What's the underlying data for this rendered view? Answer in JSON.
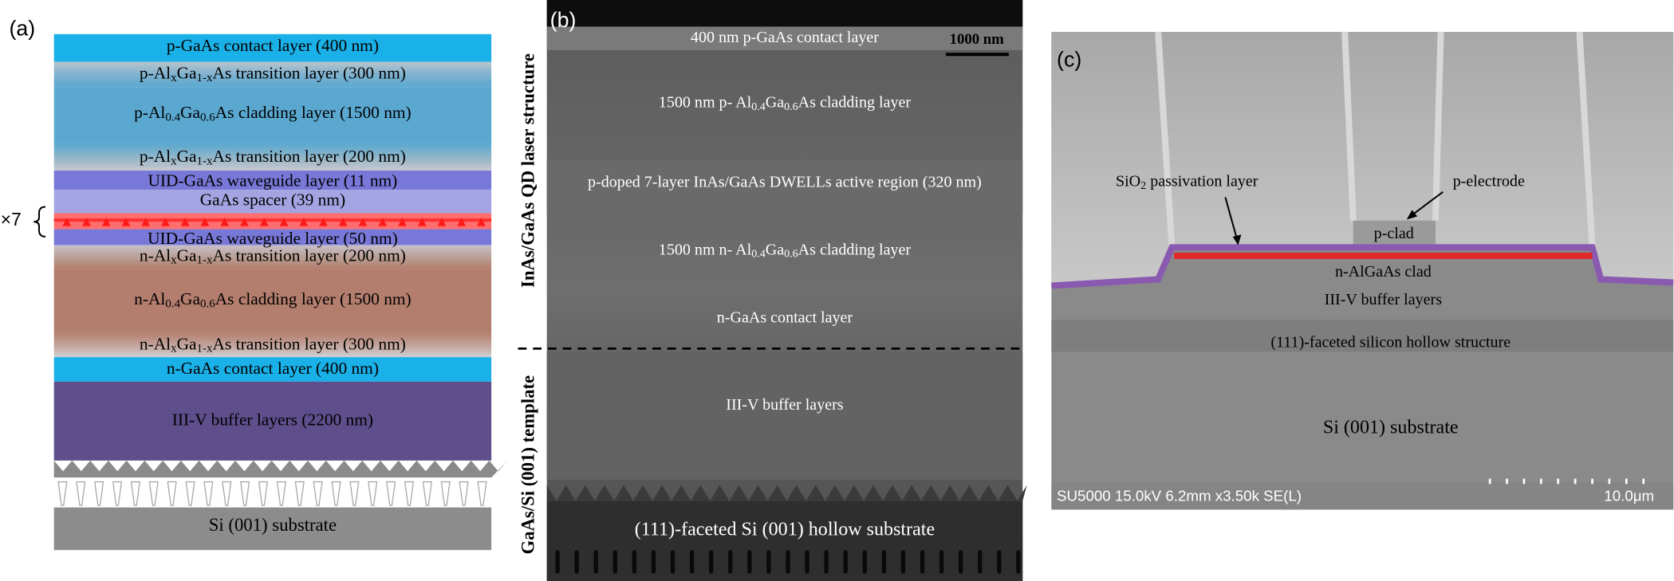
{
  "panel_a": {
    "label": "(a)",
    "repeat": "×7",
    "layers": [
      "p-GaAs contact layer (400 nm)",
      [
        "p-Al",
        "x",
        "Ga",
        "1-x",
        "As transition layer (300 nm)"
      ],
      [
        "p-Al",
        "0.4",
        "Ga",
        "0.6",
        "As cladding layer (1500 nm)"
      ],
      [
        "p-Al",
        "x",
        "Ga",
        "1-x",
        "As transition layer (200 nm)"
      ],
      "UID-GaAs waveguide layer (11 nm)",
      "GaAs spacer (39 nm)",
      "UID-GaAs waveguide layer (50 nm)",
      [
        "n-Al",
        "x",
        "Ga",
        "1-x",
        "As transition layer (200 nm)"
      ],
      [
        "n-Al",
        "0.4",
        "Ga",
        "0.6",
        "As cladding layer (1500 nm)"
      ],
      [
        "n-Al",
        "x",
        "Ga",
        "1-x",
        "As transition layer (300 nm)"
      ],
      "n-GaAs contact layer (400 nm)",
      "III-V  buffer layers (2200 nm)"
    ],
    "substrate": "Si (001) substrate"
  },
  "panel_b": {
    "label": "(b)",
    "scale_bar": "1000 nm",
    "side_labels": [
      "InAs/GaAs QD laser structure",
      "GaAs/Si (001) template"
    ],
    "layers": [
      "400 nm p-GaAs contact layer",
      [
        "1500 nm p- Al",
        "0.4",
        "Ga",
        "0.6",
        "As cladding layer"
      ],
      "p-doped 7-layer InAs/GaAs DWELLs active region (320 nm)",
      [
        "1500 nm n- Al",
        "0.4",
        "Ga",
        "0.6",
        "As cladding layer"
      ],
      "n-GaAs contact layer",
      "III-V buffer layers",
      "(111)-faceted Si (001) hollow substrate"
    ]
  },
  "panel_c": {
    "label": "(c)",
    "labels": [
      [
        "SiO",
        "2",
        " passivation layer"
      ],
      "p-electrode",
      "p-clad",
      "n-AlGaAs clad",
      "III-V buffer layers",
      "(111)-faceted silicon hollow structure",
      "Si (001) substrate"
    ],
    "info": "SU5000 15.0kV 6.2mm x3.50k SE(L)",
    "scale": "10.0μm"
  }
}
